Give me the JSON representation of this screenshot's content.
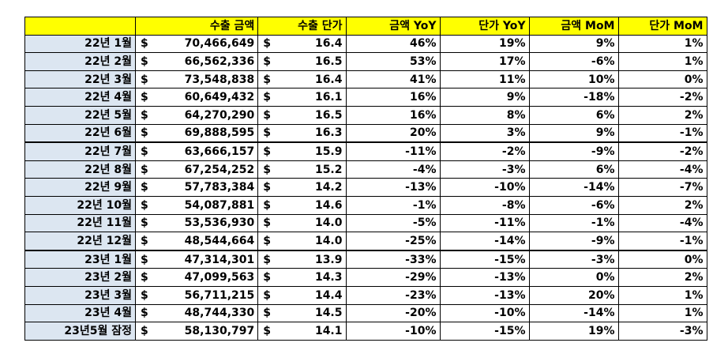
{
  "headers": [
    "",
    "수출 금액",
    "수출 단가",
    "금액 YoY",
    "단가 YoY",
    "금액 MoM",
    "단가 MoM"
  ],
  "currency_symbol": "$",
  "rows": [
    {
      "label": "22년 1월",
      "amount": "70,466,649",
      "price": "16.4",
      "amount_yoy": "46%",
      "price_yoy": "19%",
      "amount_mom": "9%",
      "price_mom": "1%"
    },
    {
      "label": "22년 2월",
      "amount": "66,562,336",
      "price": "16.5",
      "amount_yoy": "53%",
      "price_yoy": "17%",
      "amount_mom": "-6%",
      "price_mom": "1%"
    },
    {
      "label": "22년 3월",
      "amount": "73,548,838",
      "price": "16.4",
      "amount_yoy": "41%",
      "price_yoy": "11%",
      "amount_mom": "10%",
      "price_mom": "0%"
    },
    {
      "label": "22년 4월",
      "amount": "60,649,432",
      "price": "16.1",
      "amount_yoy": "16%",
      "price_yoy": "9%",
      "amount_mom": "-18%",
      "price_mom": "-2%"
    },
    {
      "label": "22년 5월",
      "amount": "64,270,290",
      "price": "16.5",
      "amount_yoy": "16%",
      "price_yoy": "8%",
      "amount_mom": "6%",
      "price_mom": "2%"
    },
    {
      "label": "22년 6월",
      "amount": "69,888,595",
      "price": "16.3",
      "amount_yoy": "20%",
      "price_yoy": "3%",
      "amount_mom": "9%",
      "price_mom": "-1%"
    },
    {
      "label": "22년 7월",
      "amount": "63,666,157",
      "price": "15.9",
      "amount_yoy": "-11%",
      "price_yoy": "-2%",
      "amount_mom": "-9%",
      "price_mom": "-2%"
    },
    {
      "label": "22년 8월",
      "amount": "67,254,252",
      "price": "15.2",
      "amount_yoy": "-4%",
      "price_yoy": "-3%",
      "amount_mom": "6%",
      "price_mom": "-4%"
    },
    {
      "label": "22년 9월",
      "amount": "57,783,384",
      "price": "14.2",
      "amount_yoy": "-13%",
      "price_yoy": "-10%",
      "amount_mom": "-14%",
      "price_mom": "-7%"
    },
    {
      "label": "22년 10월",
      "amount": "54,087,881",
      "price": "14.6",
      "amount_yoy": "-1%",
      "price_yoy": "-8%",
      "amount_mom": "-6%",
      "price_mom": "2%"
    },
    {
      "label": "22년 11월",
      "amount": "53,536,930",
      "price": "14.0",
      "amount_yoy": "-5%",
      "price_yoy": "-11%",
      "amount_mom": "-1%",
      "price_mom": "-4%"
    },
    {
      "label": "22년 12월",
      "amount": "48,544,664",
      "price": "14.0",
      "amount_yoy": "-25%",
      "price_yoy": "-14%",
      "amount_mom": "-9%",
      "price_mom": "-1%"
    },
    {
      "label": "23년 1월",
      "amount": "47,314,301",
      "price": "13.9",
      "amount_yoy": "-33%",
      "price_yoy": "-15%",
      "amount_mom": "-3%",
      "price_mom": "0%"
    },
    {
      "label": "23년 2월",
      "amount": "47,099,563",
      "price": "14.3",
      "amount_yoy": "-29%",
      "price_yoy": "-13%",
      "amount_mom": "0%",
      "price_mom": "2%"
    },
    {
      "label": "23년 3월",
      "amount": "56,711,215",
      "price": "14.4",
      "amount_yoy": "-23%",
      "price_yoy": "-13%",
      "amount_mom": "20%",
      "price_mom": "1%"
    },
    {
      "label": "23년 4월",
      "amount": "48,744,330",
      "price": "14.5",
      "amount_yoy": "-20%",
      "price_yoy": "-10%",
      "amount_mom": "-14%",
      "price_mom": "1%"
    },
    {
      "label": "23년5월 잠정",
      "amount": "58,130,797",
      "price": "14.1",
      "amount_yoy": "-10%",
      "price_yoy": "-15%",
      "amount_mom": "19%",
      "price_mom": "-3%"
    }
  ],
  "colors": {
    "header_bg": "#ffff00",
    "label_bg": "#dce6f1",
    "border": "#000000"
  }
}
